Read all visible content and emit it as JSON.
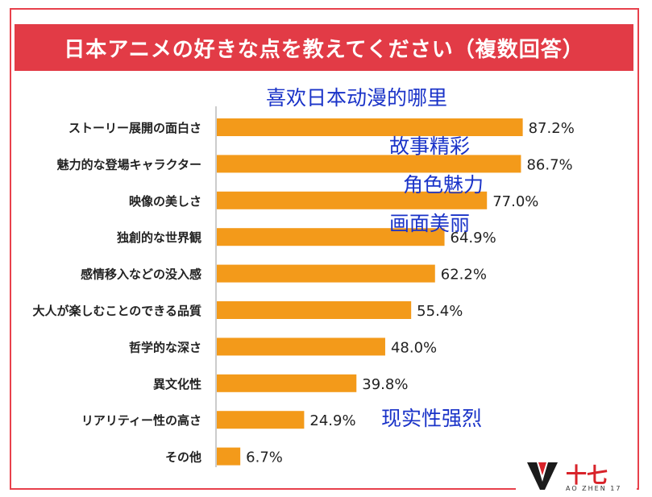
{
  "banner": {
    "title": "日本アニメの好きな点を教えてください（複数回答）"
  },
  "overlay": {
    "question_cn": "喜欢日本动漫的哪里",
    "annotations": [
      "故事精彩",
      "角色魅力",
      "画面美丽",
      "现实性强烈"
    ]
  },
  "logo": {
    "text": "十七",
    "subtext": "AO ZHEN 17"
  },
  "colors": {
    "bar": "#f39a1a",
    "banner": "#e23b46",
    "annotation": "#1a33c8"
  },
  "chart_data": {
    "type": "bar",
    "orientation": "horizontal",
    "categories": [
      "ストーリー展開の面白さ",
      "魅力的な登場キャラクター",
      "映像の美しさ",
      "独創的な世界観",
      "感情移入などの没入感",
      "大人が楽しむことのできる品質",
      "哲学的な深さ",
      "異文化性",
      "リアリティー性の高さ",
      "その他"
    ],
    "values": [
      87.2,
      86.7,
      77.0,
      64.9,
      62.2,
      55.4,
      48.0,
      39.8,
      24.9,
      6.7
    ],
    "value_labels": [
      "87.2%",
      "86.7%",
      "77.0%",
      "64.9%",
      "62.2%",
      "55.4%",
      "48.0%",
      "39.8%",
      "24.9%",
      "6.7%"
    ],
    "xlim": [
      0,
      100
    ],
    "grid": false
  }
}
